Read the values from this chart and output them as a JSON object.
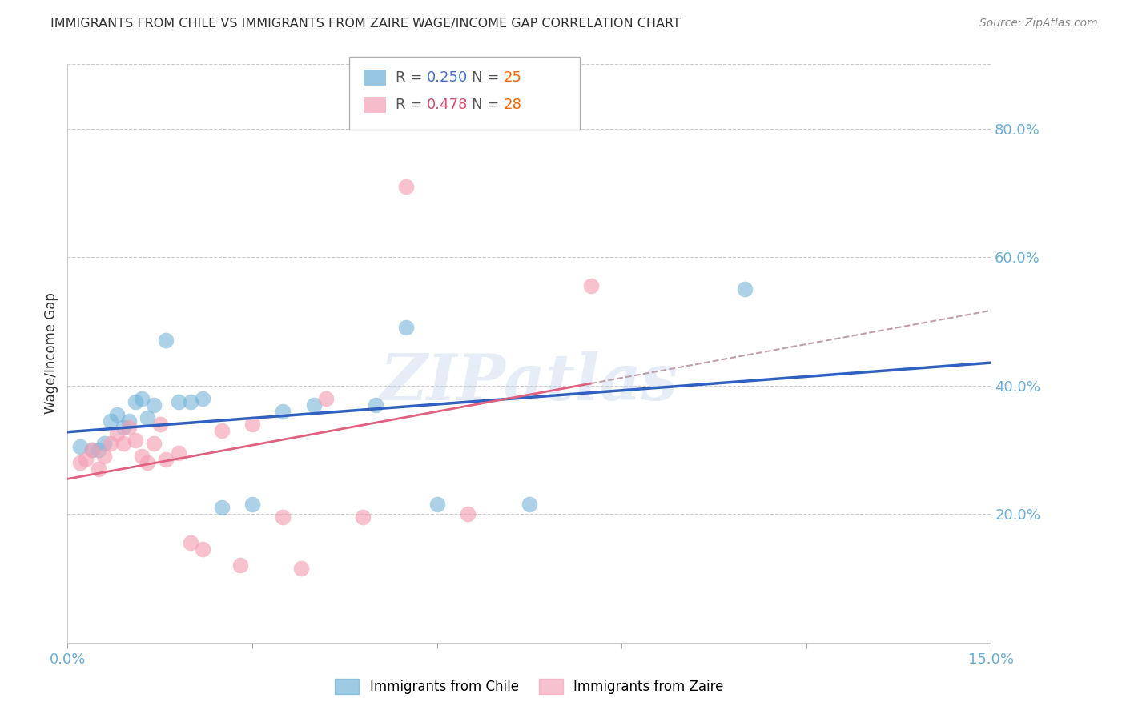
{
  "title": "IMMIGRANTS FROM CHILE VS IMMIGRANTS FROM ZAIRE WAGE/INCOME GAP CORRELATION CHART",
  "source": "Source: ZipAtlas.com",
  "ylabel": "Wage/Income Gap",
  "xlim": [
    0.0,
    0.15
  ],
  "ylim": [
    0.0,
    0.9
  ],
  "xticks": [
    0.0,
    0.03,
    0.06,
    0.09,
    0.12,
    0.15
  ],
  "xtick_labels": [
    "0.0%",
    "",
    "",
    "",
    "",
    "15.0%"
  ],
  "ytick_right_vals": [
    0.2,
    0.4,
    0.6,
    0.8
  ],
  "ytick_right_labels": [
    "20.0%",
    "40.0%",
    "60.0%",
    "80.0%"
  ],
  "chile_color": "#6baed6",
  "zaire_color": "#f4a0b5",
  "chile_line_color": "#3060c0",
  "zaire_line_color": "#e06080",
  "zaire_dash_color": "#c0a0a8",
  "chile_label": "Immigrants from Chile",
  "zaire_label": "Immigrants from Zaire",
  "chile_R": 0.25,
  "chile_N": 25,
  "zaire_R": 0.478,
  "zaire_N": 28,
  "watermark": "ZIPatlas",
  "chile_x": [
    0.002,
    0.004,
    0.005,
    0.006,
    0.007,
    0.008,
    0.009,
    0.01,
    0.011,
    0.012,
    0.013,
    0.014,
    0.016,
    0.018,
    0.02,
    0.022,
    0.025,
    0.03,
    0.035,
    0.04,
    0.05,
    0.055,
    0.06,
    0.075,
    0.11
  ],
  "chile_y": [
    0.305,
    0.3,
    0.3,
    0.31,
    0.345,
    0.355,
    0.335,
    0.345,
    0.375,
    0.38,
    0.35,
    0.37,
    0.47,
    0.375,
    0.375,
    0.38,
    0.21,
    0.215,
    0.36,
    0.37,
    0.37,
    0.49,
    0.215,
    0.215,
    0.55
  ],
  "zaire_x": [
    0.002,
    0.003,
    0.004,
    0.005,
    0.006,
    0.007,
    0.008,
    0.009,
    0.01,
    0.011,
    0.012,
    0.013,
    0.014,
    0.015,
    0.016,
    0.018,
    0.02,
    0.022,
    0.025,
    0.028,
    0.03,
    0.035,
    0.038,
    0.042,
    0.048,
    0.055,
    0.065,
    0.085
  ],
  "zaire_y": [
    0.28,
    0.285,
    0.3,
    0.27,
    0.29,
    0.31,
    0.325,
    0.31,
    0.335,
    0.315,
    0.29,
    0.28,
    0.31,
    0.34,
    0.285,
    0.295,
    0.155,
    0.145,
    0.33,
    0.12,
    0.34,
    0.195,
    0.115,
    0.38,
    0.195,
    0.71,
    0.2,
    0.555
  ],
  "background_color": "#ffffff",
  "grid_color": "#cccccc",
  "title_color": "#333333",
  "legend_R_color_chile": "#4472c4",
  "legend_N_color_chile": "#ff6600",
  "legend_R_color_zaire": "#d05070",
  "legend_N_color_zaire": "#ff6600"
}
